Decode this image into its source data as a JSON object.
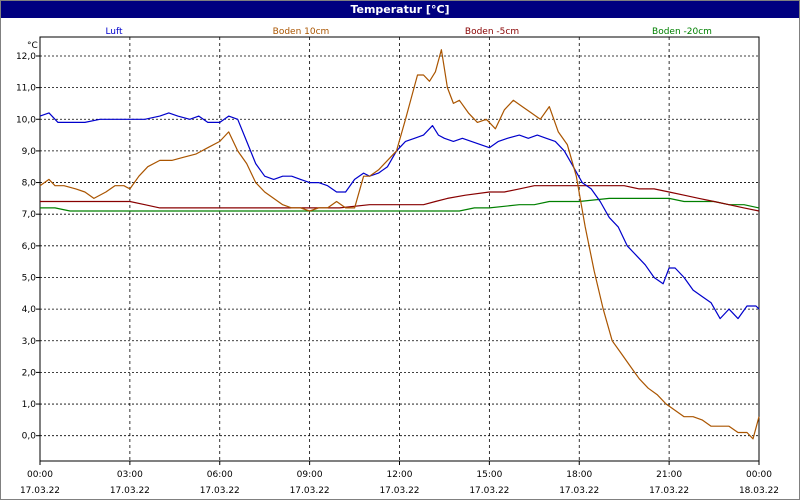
{
  "window": {
    "title": "Temperatur [°C]"
  },
  "chart_data": {
    "type": "line",
    "title": "Temperatur [°C]",
    "unit_label": "°C",
    "ylim": [
      -0.8,
      12.6
    ],
    "y_ticks": [
      0.0,
      1.0,
      2.0,
      3.0,
      4.0,
      5.0,
      6.0,
      7.0,
      8.0,
      9.0,
      10.0,
      11.0,
      12.0
    ],
    "y_tick_labels": [
      "0,0",
      "1,0",
      "2,0",
      "3,0",
      "4,0",
      "5,0",
      "6,0",
      "7,0",
      "8,0",
      "9,0",
      "10,0",
      "11,0",
      "12,0"
    ],
    "xlim": [
      0,
      24
    ],
    "x_ticks": [
      0,
      3,
      6,
      9,
      12,
      15,
      18,
      21,
      24
    ],
    "x_tick_labels": [
      {
        "time": "00:00",
        "date": "17.03.22"
      },
      {
        "time": "03:00",
        "date": "17.03.22"
      },
      {
        "time": "06:00",
        "date": "17.03.22"
      },
      {
        "time": "09:00",
        "date": "17.03.22"
      },
      {
        "time": "12:00",
        "date": "17.03.22"
      },
      {
        "time": "15:00",
        "date": "17.03.22"
      },
      {
        "time": "18:00",
        "date": "17.03.22"
      },
      {
        "time": "21:00",
        "date": "17.03.22"
      },
      {
        "time": "00:00",
        "date": "18.03.22"
      }
    ],
    "grid": true,
    "legend_position": "top",
    "series": [
      {
        "name": "Luft",
        "color": "#0000cc",
        "x": [
          0,
          0.3,
          0.6,
          0.9,
          1.5,
          2,
          2.5,
          3,
          3.5,
          4,
          4.3,
          4.6,
          5,
          5.3,
          5.6,
          6,
          6.3,
          6.6,
          6.9,
          7.2,
          7.5,
          7.8,
          8.1,
          8.4,
          8.7,
          9,
          9.3,
          9.6,
          9.9,
          10.2,
          10.5,
          10.8,
          11,
          11.3,
          11.6,
          11.9,
          12.2,
          12.5,
          12.8,
          13.1,
          13.3,
          13.5,
          13.8,
          14.1,
          14.4,
          14.7,
          15,
          15.3,
          15.6,
          16,
          16.3,
          16.6,
          16.9,
          17.2,
          17.5,
          17.8,
          18.1,
          18.4,
          18.7,
          19,
          19.3,
          19.6,
          19.9,
          20.2,
          20.5,
          20.8,
          21,
          21.2,
          21.5,
          21.8,
          22.1,
          22.4,
          22.7,
          23,
          23.3,
          23.6,
          23.9,
          24
        ],
        "y": [
          10.1,
          10.2,
          9.9,
          9.9,
          9.9,
          10.0,
          10.0,
          10.0,
          10.0,
          10.1,
          10.2,
          10.1,
          10.0,
          10.1,
          9.9,
          9.9,
          10.1,
          10.0,
          9.3,
          8.6,
          8.2,
          8.1,
          8.2,
          8.2,
          8.1,
          8.0,
          8.0,
          7.9,
          7.7,
          7.7,
          8.1,
          8.3,
          8.2,
          8.3,
          8.5,
          9.0,
          9.3,
          9.4,
          9.5,
          9.8,
          9.5,
          9.4,
          9.3,
          9.4,
          9.3,
          9.2,
          9.1,
          9.3,
          9.4,
          9.5,
          9.4,
          9.5,
          9.4,
          9.3,
          9.0,
          8.5,
          8.0,
          7.8,
          7.4,
          6.9,
          6.6,
          6.0,
          5.7,
          5.4,
          5.0,
          4.8,
          5.3,
          5.3,
          5.0,
          4.6,
          4.4,
          4.2,
          3.7,
          4.0,
          3.7,
          4.1,
          4.1,
          4.0
        ]
      },
      {
        "name": "Boden 10cm",
        "color": "#aa5500",
        "x": [
          0,
          0.3,
          0.5,
          0.8,
          1.2,
          1.5,
          1.8,
          2.2,
          2.5,
          2.8,
          3.0,
          3.3,
          3.6,
          4,
          4.4,
          4.8,
          5.2,
          5.6,
          6,
          6.3,
          6.6,
          6.9,
          7.2,
          7.5,
          7.8,
          8.1,
          8.4,
          8.7,
          9,
          9.3,
          9.6,
          9.9,
          10.2,
          10.5,
          10.8,
          11,
          11.3,
          11.6,
          11.9,
          12.2,
          12.4,
          12.6,
          12.8,
          13.0,
          13.2,
          13.4,
          13.6,
          13.8,
          14.0,
          14.3,
          14.6,
          14.9,
          15.2,
          15.5,
          15.8,
          16.1,
          16.4,
          16.7,
          17,
          17.3,
          17.6,
          17.9,
          18.2,
          18.5,
          18.8,
          19.1,
          19.4,
          19.7,
          20,
          20.3,
          20.6,
          20.9,
          21.2,
          21.5,
          21.8,
          22.1,
          22.4,
          22.7,
          23,
          23.3,
          23.6,
          23.8,
          24
        ],
        "y": [
          7.9,
          8.1,
          7.9,
          7.9,
          7.8,
          7.7,
          7.5,
          7.7,
          7.9,
          7.9,
          7.8,
          8.2,
          8.5,
          8.7,
          8.7,
          8.8,
          8.9,
          9.1,
          9.3,
          9.6,
          9.0,
          8.6,
          8.0,
          7.7,
          7.5,
          7.3,
          7.2,
          7.2,
          7.1,
          7.2,
          7.2,
          7.4,
          7.2,
          7.2,
          8.2,
          8.2,
          8.4,
          8.7,
          9.0,
          10.0,
          10.7,
          11.4,
          11.4,
          11.2,
          11.5,
          12.2,
          11.0,
          10.5,
          10.6,
          10.2,
          9.9,
          10.0,
          9.7,
          10.3,
          10.6,
          10.4,
          10.2,
          10.0,
          10.4,
          9.6,
          9.2,
          8.2,
          6.6,
          5.2,
          4.0,
          3.0,
          2.6,
          2.2,
          1.8,
          1.5,
          1.3,
          1.0,
          0.8,
          0.6,
          0.6,
          0.5,
          0.3,
          0.3,
          0.3,
          0.1,
          0.1,
          -0.1,
          0.6
        ]
      },
      {
        "name": "Boden -5cm",
        "color": "#880000",
        "x": [
          0,
          1,
          2,
          3,
          3.5,
          4,
          5,
          6,
          7,
          8,
          9,
          10,
          11,
          12,
          12.8,
          13.2,
          13.6,
          14.2,
          15,
          15.5,
          16,
          16.5,
          17,
          17.5,
          18,
          18.5,
          19,
          19.5,
          20,
          20.5,
          21,
          21.5,
          22,
          22.5,
          23,
          23.5,
          24
        ],
        "y": [
          7.4,
          7.4,
          7.4,
          7.4,
          7.3,
          7.2,
          7.2,
          7.2,
          7.2,
          7.2,
          7.2,
          7.2,
          7.3,
          7.3,
          7.3,
          7.4,
          7.5,
          7.6,
          7.7,
          7.7,
          7.8,
          7.9,
          7.9,
          7.9,
          7.9,
          7.9,
          7.9,
          7.9,
          7.8,
          7.8,
          7.7,
          7.6,
          7.5,
          7.4,
          7.3,
          7.2,
          7.1
        ]
      },
      {
        "name": "Boden -20cm",
        "color": "#008000",
        "x": [
          0,
          0.5,
          1,
          3,
          6,
          9,
          12,
          14,
          14.5,
          15,
          16,
          16.5,
          17,
          17.5,
          18,
          19,
          20,
          21,
          21.5,
          22,
          22.5,
          23,
          23.5,
          24
        ],
        "y": [
          7.2,
          7.2,
          7.1,
          7.1,
          7.1,
          7.1,
          7.1,
          7.1,
          7.2,
          7.2,
          7.3,
          7.3,
          7.4,
          7.4,
          7.4,
          7.5,
          7.5,
          7.5,
          7.4,
          7.4,
          7.4,
          7.3,
          7.3,
          7.2
        ]
      }
    ]
  }
}
